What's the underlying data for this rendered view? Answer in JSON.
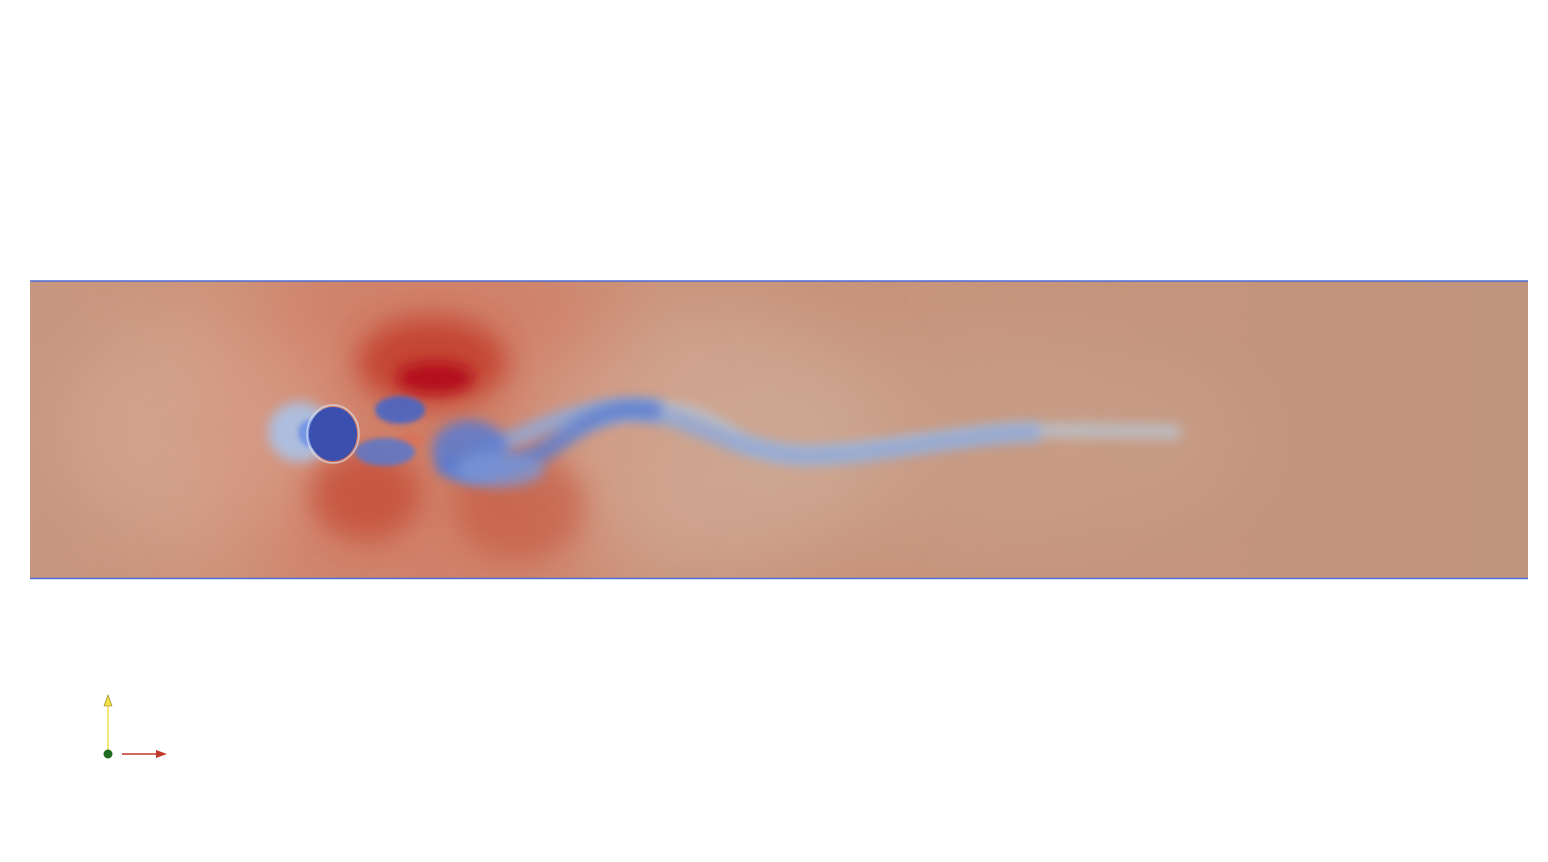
{
  "visualization": {
    "colormap": [
      "#3b4cc0",
      "#6f92f3",
      "#aac7fd",
      "#dddcdc",
      "#f7b89c",
      "#e7745b",
      "#b40426"
    ],
    "background_color": "#ffffff",
    "field_base_color": "#c2957d",
    "obstacle_color": "#3a4fae",
    "wall_color": "#4d6bd6"
  },
  "orientation_axes": {
    "x_axis_color": "#c0392b",
    "y_axis_color": "#f2e04a",
    "origin_color": "#1f6b1f",
    "icon": "orientation-axes-icon"
  }
}
